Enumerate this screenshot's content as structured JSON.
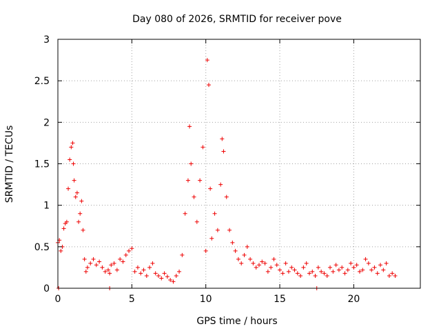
{
  "chart_data": {
    "type": "scatter",
    "title": "Day 080 of 2026, SRMTID for receiver pove",
    "xlabel": "GPS time / hours",
    "ylabel": "SRMTID / TECUs",
    "xlim": [
      0,
      24.5
    ],
    "ylim": [
      0,
      3
    ],
    "xticks": [
      0,
      5,
      10,
      15,
      20
    ],
    "xtick_labels": [
      "0",
      "5",
      "10",
      "15",
      "20"
    ],
    "yticks": [
      0,
      0.5,
      1,
      1.5,
      2,
      2.5,
      3
    ],
    "ytick_labels": [
      "0",
      "0.5",
      "1",
      "1.5",
      "2",
      "2.5",
      "3"
    ],
    "grid": true,
    "marker": "plus",
    "color": "#ee0000",
    "series": [
      {
        "name": "SRMTID",
        "x": [
          0.0,
          0.1,
          0.2,
          0.3,
          0.4,
          0.5,
          0.6,
          0.7,
          0.8,
          0.9,
          1.0,
          1.05,
          1.1,
          1.2,
          1.3,
          1.4,
          1.5,
          1.6,
          1.7,
          1.8,
          1.9,
          2.0,
          2.2,
          2.4,
          2.6,
          2.8,
          3.0,
          3.2,
          3.4,
          3.5,
          3.6,
          3.8,
          4.0,
          4.2,
          4.4,
          4.6,
          4.8,
          5.0,
          5.2,
          5.4,
          5.6,
          5.8,
          6.0,
          6.2,
          6.4,
          6.6,
          6.8,
          7.0,
          7.2,
          7.4,
          7.6,
          7.8,
          8.0,
          8.2,
          8.4,
          8.6,
          8.8,
          8.9,
          9.0,
          9.2,
          9.4,
          9.6,
          9.8,
          10.0,
          10.1,
          10.2,
          10.3,
          10.4,
          10.6,
          10.8,
          11.0,
          11.1,
          11.2,
          11.4,
          11.6,
          11.8,
          12.0,
          12.2,
          12.4,
          12.6,
          12.8,
          13.0,
          13.2,
          13.4,
          13.6,
          13.8,
          14.0,
          14.2,
          14.4,
          14.6,
          14.8,
          15.0,
          15.2,
          15.4,
          15.6,
          15.8,
          16.0,
          16.2,
          16.4,
          16.6,
          16.8,
          17.0,
          17.2,
          17.4,
          17.6,
          17.8,
          18.0,
          18.2,
          18.4,
          18.6,
          18.8,
          19.0,
          19.2,
          19.4,
          19.6,
          19.8,
          20.0,
          20.2,
          20.4,
          20.6,
          20.8,
          21.0,
          21.2,
          21.4,
          21.6,
          21.8,
          22.0,
          22.2,
          22.4,
          22.6,
          22.8,
          0.05,
          3.5,
          17.5
        ],
        "y": [
          0.55,
          0.58,
          0.45,
          0.5,
          0.72,
          0.78,
          0.8,
          1.2,
          1.55,
          1.7,
          1.75,
          1.5,
          1.3,
          1.1,
          1.15,
          0.8,
          0.9,
          1.05,
          0.7,
          0.35,
          0.2,
          0.25,
          0.3,
          0.35,
          0.28,
          0.32,
          0.25,
          0.2,
          0.22,
          0.18,
          0.28,
          0.3,
          0.22,
          0.35,
          0.32,
          0.4,
          0.45,
          0.48,
          0.2,
          0.25,
          0.18,
          0.22,
          0.15,
          0.25,
          0.3,
          0.18,
          0.15,
          0.12,
          0.18,
          0.14,
          0.1,
          0.08,
          0.15,
          0.2,
          0.4,
          0.9,
          1.3,
          1.95,
          1.5,
          1.1,
          0.8,
          1.3,
          1.7,
          0.45,
          2.75,
          2.45,
          1.2,
          0.6,
          0.9,
          0.7,
          1.25,
          1.8,
          1.65,
          1.1,
          0.7,
          0.55,
          0.45,
          0.35,
          0.3,
          0.4,
          0.5,
          0.35,
          0.3,
          0.25,
          0.28,
          0.32,
          0.3,
          0.2,
          0.25,
          0.35,
          0.28,
          0.22,
          0.18,
          0.3,
          0.2,
          0.25,
          0.22,
          0.18,
          0.15,
          0.25,
          0.3,
          0.18,
          0.2,
          0.15,
          0.25,
          0.2,
          0.18,
          0.15,
          0.25,
          0.2,
          0.28,
          0.22,
          0.25,
          0.18,
          0.22,
          0.3,
          0.25,
          0.28,
          0.2,
          0.22,
          0.35,
          0.3,
          0.22,
          0.25,
          0.18,
          0.28,
          0.22,
          0.3,
          0.15,
          0.18,
          0.15,
          0.0,
          0.0,
          0.0
        ]
      }
    ]
  }
}
